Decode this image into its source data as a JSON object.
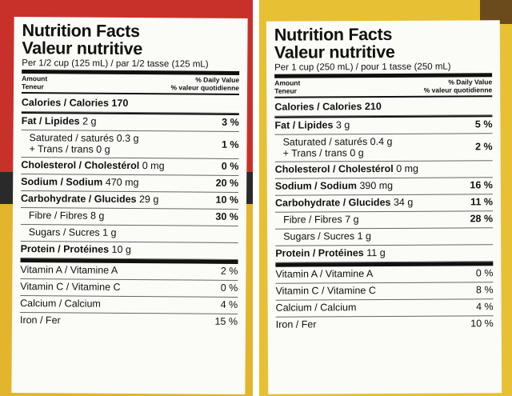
{
  "left": {
    "title_en": "Nutrition Facts",
    "title_fr": "Valeur nutritive",
    "serving": "Per 1/2 cup (125 mL) / par 1/2 tasse (125 mL)",
    "header_amount": "Amount",
    "header_teneur": "Teneur",
    "header_dv": "% Daily Value",
    "header_vq": "% valeur quotidienne",
    "calories": "Calories / Calories 170",
    "fat_label": "Fat / Lipides",
    "fat_value": " 2 g",
    "fat_pct": "3 %",
    "sat_line1": "Saturated / saturés 0.3 g",
    "sat_line2": "+ Trans / trans 0 g",
    "sat_pct": "1 %",
    "chol_label": "Cholesterol / Cholestérol",
    "chol_value": " 0 mg",
    "chol_pct": "0 %",
    "sodium_label": "Sodium / Sodium",
    "sodium_value": " 470 mg",
    "sodium_pct": "20 %",
    "carb_label": "Carbohydrate / Glucides",
    "carb_value": " 29 g",
    "carb_pct": "10 %",
    "fibre": "Fibre / Fibres 8 g",
    "fibre_pct": "30 %",
    "sugars": "Sugars / Sucres 1 g",
    "protein_label": "Protein / Protéines",
    "protein_value": " 10 g",
    "vita": "Vitamin A / Vitamine A",
    "vita_pct": "2 %",
    "vitc": "Vitamin C / Vitamine C",
    "vitc_pct": "0 %",
    "calcium": "Calcium / Calcium",
    "calcium_pct": "4 %",
    "iron": "Iron / Fer",
    "iron_pct": "15 %"
  },
  "right": {
    "title_en": "Nutrition Facts",
    "title_fr": "Valeur nutritive",
    "serving": "Per 1 cup (250 mL) / pour 1 tasse (250 mL)",
    "header_amount": "Amount",
    "header_teneur": "Teneur",
    "header_dv": "% Daily Value",
    "header_vq": "% valeur quotidienne",
    "calories": "Calories / Calories 210",
    "fat_label": "Fat / Lipides",
    "fat_value": " 3 g",
    "fat_pct": "5 %",
    "sat_line1": "Saturated / saturés 0.4 g",
    "sat_line2": "+ Trans / trans 0 g",
    "sat_pct": "2 %",
    "chol_label": "Cholesterol / Cholestérol",
    "chol_value": " 0 mg",
    "chol_pct": "",
    "sodium_label": "Sodium / Sodium",
    "sodium_value": " 390 mg",
    "sodium_pct": "16 %",
    "carb_label": "Carbohydrate / Glucides",
    "carb_value": " 34 g",
    "carb_pct": "11 %",
    "fibre": "Fibre / Fibres 7 g",
    "fibre_pct": "28 %",
    "sugars": "Sugars / Sucres 1 g",
    "protein_label": "Protein / Protéines",
    "protein_value": " 11 g",
    "vita": "Vitamin A / Vitamine A",
    "vita_pct": "0 %",
    "vitc": "Vitamin C / Vitamine C",
    "vitc_pct": "8 %",
    "calcium": "Calcium / Calcium",
    "calcium_pct": "4 %",
    "iron": "Iron / Fer",
    "iron_pct": "10 %"
  },
  "colors": {
    "left_red": "#c8312a",
    "left_yellow": "#e2b52d",
    "right_yellow": "#e7c034",
    "panel": "#fbfbf8"
  }
}
